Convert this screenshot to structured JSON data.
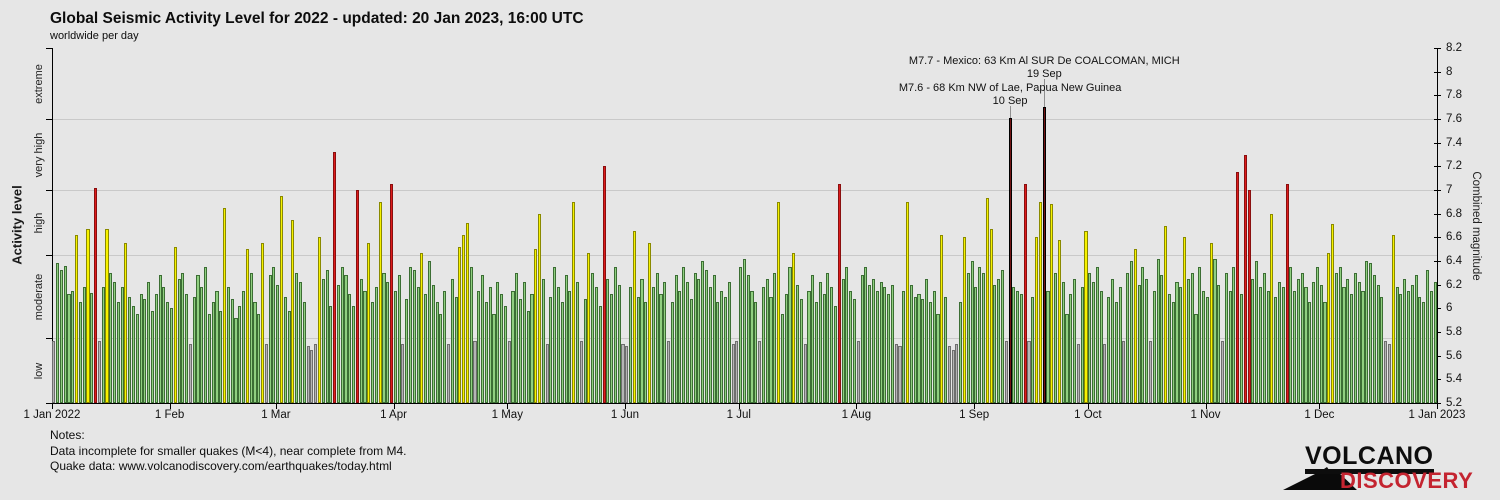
{
  "title": "Global Seismic Activity Level for 2022 - updated: 20 Jan 2023, 16:00 UTC",
  "subtitle": "worldwide per day",
  "left_axis": {
    "label": "Activity level"
  },
  "right_axis": {
    "label": "Combined magnitude",
    "min": 5.2,
    "max": 8.2,
    "step": 0.2
  },
  "x_axis": {
    "tick_labels": [
      "1 Jan 2022",
      "1 Feb",
      "1 Mar",
      "1 Apr",
      "1 May",
      "1 Jun",
      "1 Jul",
      "1 Aug",
      "1 Sep",
      "1 Oct",
      "1 Nov",
      "1 Dec",
      "1 Jan 2023"
    ],
    "month_day_counts": [
      31,
      28,
      31,
      30,
      31,
      30,
      31,
      31,
      30,
      31,
      30,
      31
    ]
  },
  "notes": {
    "heading": "Notes:",
    "line1": "Data incomplete for smaller quakes (M<4), near complete from M4.",
    "line2": "Quake data: www.volcanodiscovery.com/earthquakes/today.html"
  },
  "logo": {
    "top": "VOLCANO",
    "bottom": "DISCOVERY",
    "accent": "#c42430",
    "ink": "#0d0d0d"
  },
  "chart_data": {
    "type": "bar",
    "title": "Global Seismic Activity Level for 2022",
    "ylabel_left": "Activity level",
    "ylabel_right": "Combined magnitude",
    "ylim": [
      5.2,
      8.2
    ],
    "x_start": "1 Jan 2022",
    "x_end": "1 Jan 2023",
    "x_unit": "day",
    "legend": "none",
    "grid": "horizontal at activity-level boundaries",
    "levels": [
      {
        "name": "low",
        "max": 5.75,
        "fill": "#b5b5b5",
        "edge": "#6e6e6e"
      },
      {
        "name": "moderate",
        "max": 6.45,
        "fill": "#90cf80",
        "edge": "#3c6e34"
      },
      {
        "name": "high",
        "max": 7.0,
        "fill": "#f7f200",
        "edge": "#8a8a00"
      },
      {
        "name": "very high",
        "max": 7.6,
        "fill": "#dd1c1c",
        "edge": "#8a0f0f"
      },
      {
        "name": "extreme",
        "max": 8.2,
        "fill": "#731414",
        "edge": "#000000"
      }
    ],
    "annotations": [
      {
        "label": "M7.7 - Mexico: 63 Km Al SUR De COALCOMAN, MICH",
        "date_label": "19 Sep",
        "day_index": 261,
        "magnitude": 7.7
      },
      {
        "label": "M7.6 - 68 Km NW of Lae, Papua New Guinea",
        "date_label": "10 Sep",
        "day_index": 252,
        "magnitude": 7.6
      }
    ],
    "values": [
      5.72,
      6.38,
      6.32,
      6.36,
      6.12,
      6.15,
      6.62,
      6.05,
      6.18,
      6.67,
      6.13,
      7.02,
      5.72,
      6.18,
      6.67,
      6.3,
      6.22,
      6.05,
      6.18,
      6.55,
      6.1,
      6.02,
      5.95,
      6.12,
      6.08,
      6.22,
      5.98,
      6.12,
      6.28,
      6.18,
      6.05,
      6.0,
      6.52,
      6.25,
      6.3,
      6.12,
      5.7,
      6.1,
      6.28,
      6.18,
      6.35,
      5.95,
      6.05,
      6.15,
      5.98,
      6.85,
      6.18,
      6.08,
      5.92,
      6.02,
      6.15,
      6.5,
      6.3,
      6.05,
      5.95,
      6.55,
      5.7,
      6.28,
      6.35,
      6.2,
      6.95,
      6.1,
      5.98,
      6.75,
      6.3,
      6.22,
      6.05,
      5.68,
      5.65,
      5.7,
      6.6,
      6.25,
      6.32,
      6.02,
      7.32,
      6.2,
      6.35,
      6.28,
      6.12,
      6.02,
      7.0,
      6.25,
      6.15,
      6.55,
      6.05,
      6.18,
      6.9,
      6.3,
      6.22,
      7.05,
      6.15,
      6.28,
      5.7,
      6.08,
      6.35,
      6.32,
      6.18,
      6.47,
      6.12,
      6.4,
      6.2,
      6.05,
      5.95,
      6.15,
      5.7,
      6.25,
      6.1,
      6.52,
      6.62,
      6.72,
      6.35,
      5.72,
      6.15,
      6.28,
      6.05,
      6.18,
      5.95,
      6.22,
      6.12,
      6.02,
      5.72,
      6.15,
      6.3,
      6.08,
      6.22,
      5.98,
      6.12,
      6.5,
      6.8,
      6.25,
      5.7,
      6.1,
      6.35,
      6.18,
      6.05,
      6.28,
      6.15,
      6.9,
      6.22,
      5.72,
      6.08,
      6.47,
      6.3,
      6.18,
      6.02,
      7.2,
      6.25,
      6.12,
      6.35,
      6.2,
      5.7,
      5.68,
      6.18,
      6.65,
      6.1,
      6.25,
      6.05,
      6.55,
      6.18,
      6.3,
      6.12,
      6.22,
      5.72,
      6.05,
      6.28,
      6.15,
      6.35,
      6.22,
      6.08,
      6.3,
      6.25,
      6.4,
      6.32,
      6.18,
      6.28,
      6.05,
      6.15,
      6.1,
      6.22,
      5.7,
      5.72,
      6.35,
      6.42,
      6.28,
      6.15,
      6.05,
      5.72,
      6.18,
      6.25,
      6.1,
      6.3,
      6.9,
      5.95,
      6.12,
      6.35,
      6.47,
      6.2,
      6.08,
      5.7,
      6.15,
      6.28,
      6.05,
      6.22,
      6.12,
      6.3,
      6.18,
      6.02,
      7.05,
      6.25,
      6.35,
      6.15,
      6.08,
      5.72,
      6.28,
      6.35,
      6.2,
      6.25,
      6.15,
      6.22,
      6.18,
      6.12,
      6.2,
      5.7,
      5.68,
      6.15,
      6.9,
      6.2,
      6.1,
      6.12,
      6.08,
      6.25,
      6.05,
      6.15,
      5.95,
      6.62,
      6.1,
      5.68,
      5.65,
      5.7,
      6.05,
      6.6,
      6.3,
      6.4,
      6.18,
      6.35,
      6.3,
      6.93,
      6.67,
      6.2,
      6.25,
      6.32,
      5.72,
      7.61,
      6.18,
      6.15,
      6.12,
      7.05,
      5.72,
      6.1,
      6.6,
      6.9,
      7.7,
      6.15,
      6.88,
      6.3,
      6.58,
      6.22,
      5.95,
      6.12,
      6.25,
      5.7,
      6.18,
      6.65,
      6.3,
      6.22,
      6.35,
      6.15,
      5.7,
      6.1,
      6.25,
      6.05,
      6.18,
      5.72,
      6.3,
      6.4,
      6.5,
      6.2,
      6.35,
      6.25,
      5.72,
      6.15,
      6.42,
      6.28,
      6.7,
      6.12,
      6.05,
      6.22,
      6.18,
      6.6,
      6.25,
      6.3,
      5.95,
      6.35,
      6.15,
      6.1,
      6.55,
      6.42,
      6.2,
      5.72,
      6.3,
      6.15,
      6.35,
      7.15,
      6.12,
      7.3,
      7.0,
      6.25,
      6.4,
      6.18,
      6.3,
      6.15,
      6.8,
      6.1,
      6.22,
      6.18,
      7.05,
      6.35,
      6.15,
      6.25,
      6.3,
      6.18,
      6.05,
      6.22,
      6.35,
      6.2,
      6.05,
      6.47,
      6.71,
      6.3,
      6.35,
      6.18,
      6.25,
      6.12,
      6.3,
      6.22,
      6.15,
      6.4,
      6.38,
      6.28,
      6.2,
      6.1,
      5.72,
      5.7,
      6.62,
      6.18,
      6.12,
      6.25,
      6.15,
      6.2,
      6.28,
      6.1,
      6.05,
      6.32,
      6.15,
      6.22
    ]
  }
}
